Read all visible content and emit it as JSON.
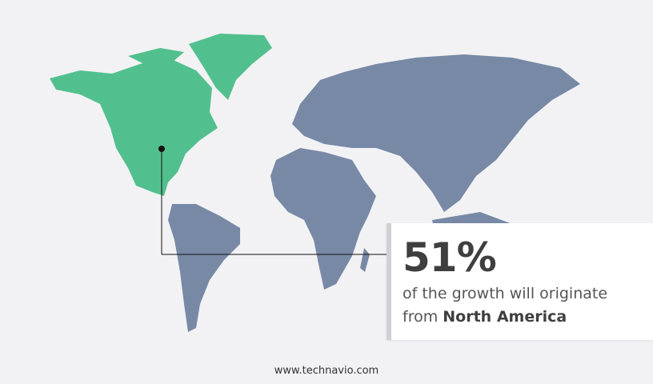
{
  "highlight": {
    "percent": "51%",
    "text": "of the growth will originate",
    "prefix": "from",
    "region": "North America"
  },
  "map": {
    "highlighted_region": "North America",
    "highlight_color": "#52c08e",
    "other_color": "#7889a6",
    "background": "#f2f2f4"
  },
  "footer": {
    "url": "www.technavio.com"
  }
}
